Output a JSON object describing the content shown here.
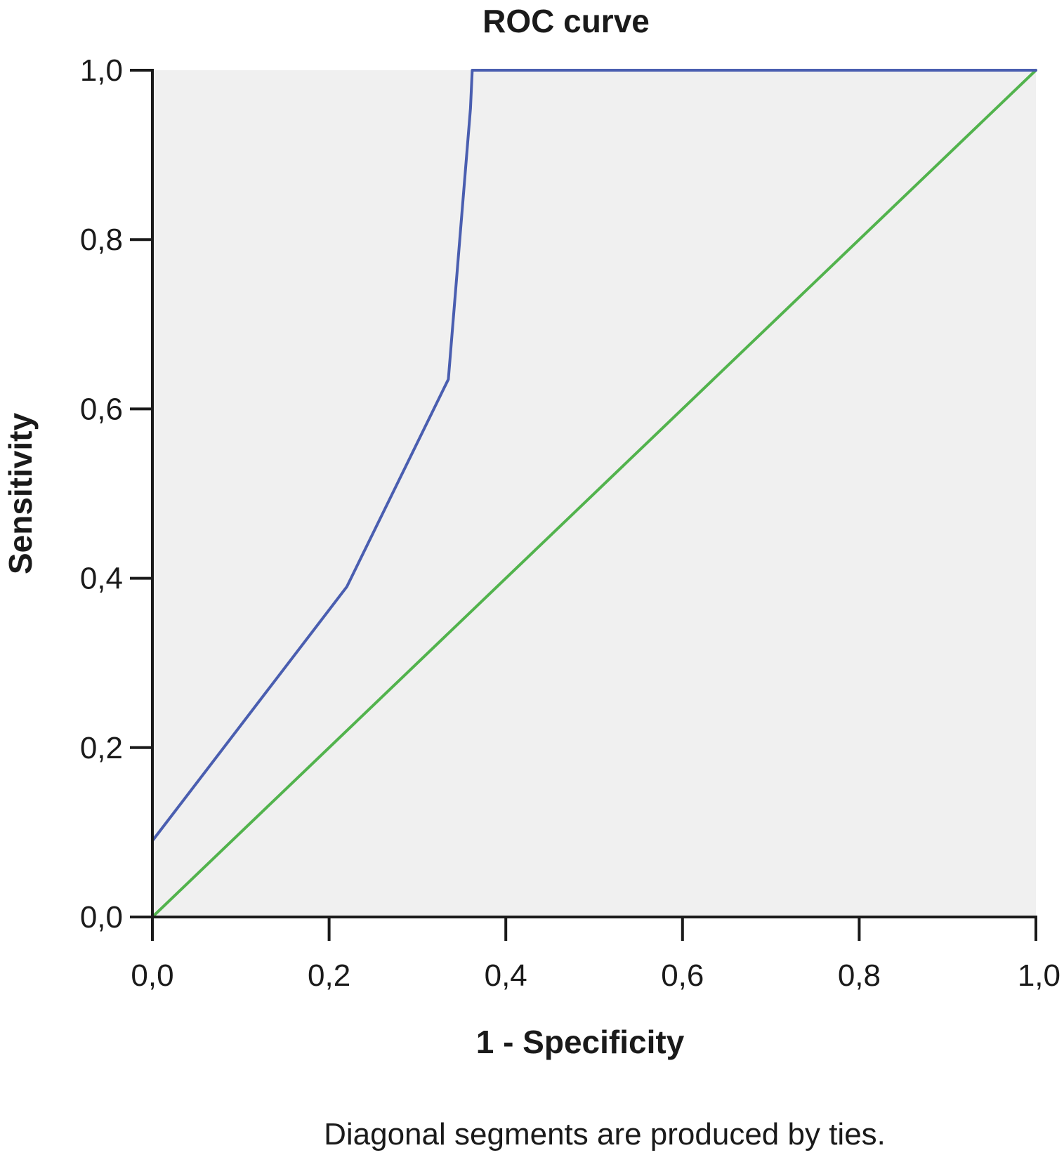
{
  "chart_data": {
    "type": "line",
    "title": "ROC curve",
    "xlabel": "1 - Specificity",
    "ylabel": "Sensitivity",
    "xlim": [
      0,
      1
    ],
    "ylim": [
      0,
      1
    ],
    "x_ticks": [
      "0,0",
      "0,2",
      "0,4",
      "0,6",
      "0,8",
      "1,0"
    ],
    "y_ticks": [
      "0,0",
      "0,2",
      "0,4",
      "0,6",
      "0,8",
      "1,0"
    ],
    "grid": false,
    "series": [
      {
        "color": "#4a5eb0",
        "points": [
          [
            0.0,
            0.0
          ],
          [
            0.0,
            0.09
          ],
          [
            0.22,
            0.39
          ],
          [
            0.335,
            0.635
          ],
          [
            0.36,
            0.955
          ],
          [
            0.362,
            1.0
          ],
          [
            1.0,
            1.0
          ]
        ]
      },
      {
        "color": "#52b34d",
        "points": [
          [
            0.0,
            0.0
          ],
          [
            1.0,
            1.0
          ]
        ]
      }
    ],
    "footnote": "Diagonal segments are produced by ties.",
    "plot_background": "#f0f0f0"
  }
}
